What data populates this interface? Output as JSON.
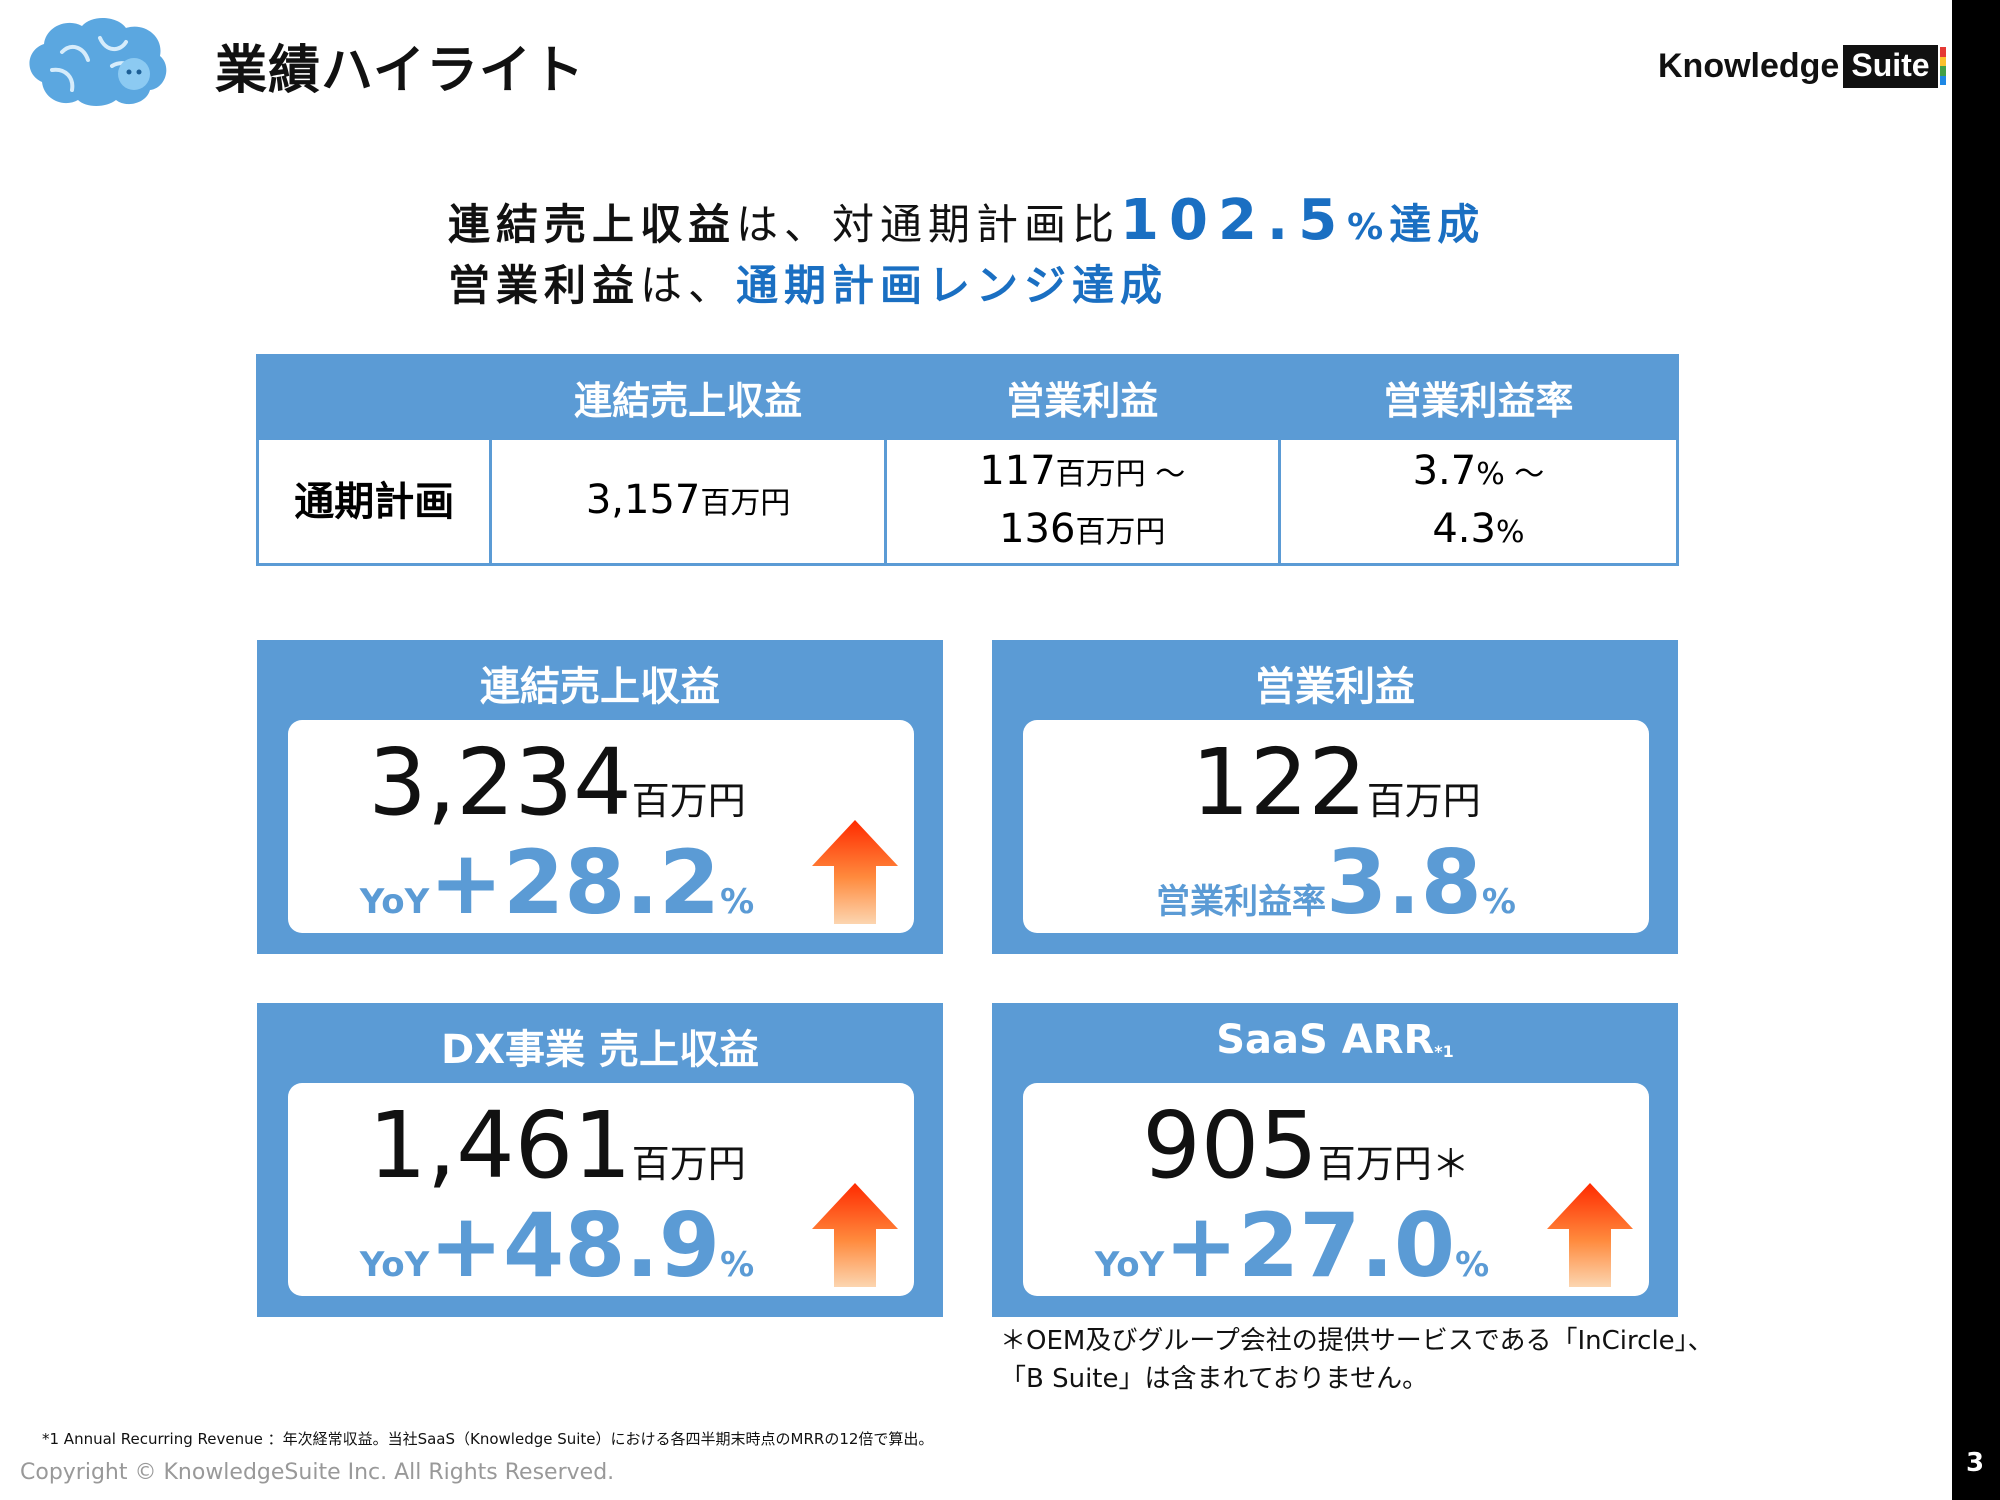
{
  "header": {
    "title": "業績ハイライト",
    "brand_knowledge": "Knowledge",
    "brand_suite": "Suite",
    "brand_stripe_colors": [
      "#e53935",
      "#fbc02d",
      "#43a047",
      "#1e88e5"
    ]
  },
  "headline": {
    "line1_subject": "連結売上収益",
    "line1_mid": "は、対通期計画比",
    "line1_value": "102.5",
    "line1_pct": "%",
    "line1_end": "達成",
    "line2_subject": "営業利益",
    "line2_mid": "は、",
    "line2_accent": "通期計画レンジ達成"
  },
  "plan_table": {
    "headers": [
      "",
      "連結売上収益",
      "営業利益",
      "営業利益率"
    ],
    "row_label": "通期計画",
    "revenue_value": "3,157",
    "revenue_unit": "百万円",
    "op_low": "117",
    "op_low_unit": "百万円 ～",
    "op_high": "136",
    "op_high_unit": "百万円",
    "margin_low": "3.7",
    "margin_low_unit": "% ～",
    "margin_high": "4.3",
    "margin_high_unit": "%"
  },
  "cards": {
    "revenue": {
      "title": "連結売上収益",
      "value": "3,234",
      "unit": "百万円",
      "sub_label": "YoY",
      "sub_value": "+28.2",
      "sub_unit": "%"
    },
    "op_profit": {
      "title": "営業利益",
      "value": "122",
      "unit": "百万円",
      "sub_label": "営業利益率",
      "sub_value": "3.8",
      "sub_unit": "%"
    },
    "dx": {
      "title": "DX事業 売上収益",
      "value": "1,461",
      "unit": "百万円",
      "sub_label": "YoY",
      "sub_value": "+48.9",
      "sub_unit": "%"
    },
    "saas": {
      "title": "SaaS ARR",
      "title_note": "*1",
      "value": "905",
      "unit": "百万円＊",
      "sub_label": "YoY",
      "sub_value": "+27.0",
      "sub_unit": "%"
    }
  },
  "notes": {
    "oem_line1": "＊OEM及びグループ会社の提供サービスである「InCircle」、",
    "oem_line2": "「B Suite」は含まれておりません。",
    "footnote": "*1  Annual Recurring Revenue ：年次経常収益。当社SaaS（Knowledge Suite）における各四半期末時点のMRRの12倍で算出。",
    "copyright": "Copyright © KnowledgeSuite Inc. All Rights Reserved.",
    "page_number": "3"
  },
  "colors": {
    "table_blue": "#5b9bd5",
    "accent_blue": "#1a6fc2",
    "arrow_top": "#ff2a00",
    "arrow_bottom": "#fcd5b0"
  }
}
